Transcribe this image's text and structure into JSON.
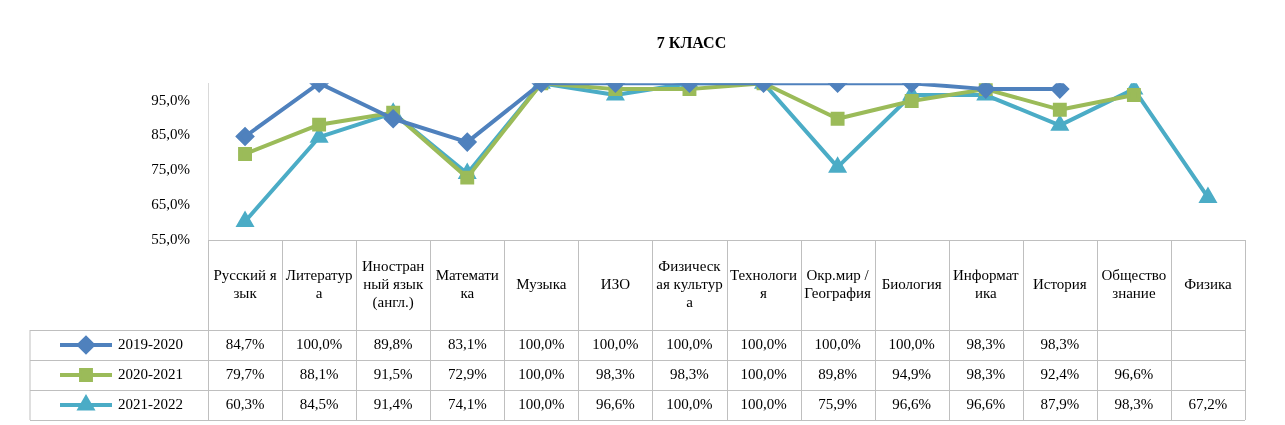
{
  "chart_data": {
    "type": "line",
    "title": "7 КЛАСС",
    "categories": [
      "Русский язык",
      "Литература",
      "Иностранный язык (англ.)",
      "Математика",
      "Музыка",
      "ИЗО",
      "Физическая культура",
      "Технология",
      "Окр.мир / География",
      "Биология",
      "Информатика",
      "История",
      "Обществознание",
      "Физика"
    ],
    "series": [
      {
        "name": "2019-2020",
        "color": "#4f81bd",
        "marker": "diamond",
        "values": [
          84.7,
          100,
          89.8,
          83.1,
          100,
          100,
          100,
          100,
          100,
          100,
          98.3,
          98.3,
          null,
          null
        ],
        "value_labels": [
          "84,7%",
          "100,0%",
          "89,8%",
          "83,1%",
          "100,0%",
          "100,0%",
          "100,0%",
          "100,0%",
          "100,0%",
          "100,0%",
          "98,3%",
          "98,3%",
          null,
          null
        ]
      },
      {
        "name": "2020-2021",
        "color": "#9bbb59",
        "marker": "square",
        "values": [
          79.7,
          88.1,
          91.5,
          72.9,
          100,
          98.3,
          98.3,
          100,
          89.8,
          94.9,
          98.3,
          92.4,
          96.6,
          null
        ],
        "value_labels": [
          "79,7%",
          "88,1%",
          "91,5%",
          "72,9%",
          "100,0%",
          "98,3%",
          "98,3%",
          "100,0%",
          "89,8%",
          "94,9%",
          "98,3%",
          "92,4%",
          "96,6%",
          null
        ]
      },
      {
        "name": "2021-2022",
        "color": "#4bacc6",
        "marker": "triangle",
        "values": [
          60.3,
          84.5,
          91.4,
          74.1,
          100,
          96.6,
          100,
          100,
          75.9,
          96.6,
          96.6,
          87.9,
          98.3,
          67.2
        ],
        "value_labels": [
          "60,3%",
          "84,5%",
          "91,4%",
          "74,1%",
          "100,0%",
          "96,6%",
          "100,0%",
          "100,0%",
          "75,9%",
          "96,6%",
          "96,6%",
          "87,9%",
          "98,3%",
          "67,2%"
        ]
      }
    ],
    "ylim": [
      55,
      100
    ],
    "yticks": [
      {
        "value": 55,
        "label": "55,0%"
      },
      {
        "value": 65,
        "label": "65,0%"
      },
      {
        "value": 75,
        "label": "75,0%"
      },
      {
        "value": 85,
        "label": "85,0%"
      },
      {
        "value": 95,
        "label": "95,0%"
      }
    ],
    "grid": false,
    "legend": "bottom",
    "tick_labels": "y",
    "line_style": "solid"
  }
}
